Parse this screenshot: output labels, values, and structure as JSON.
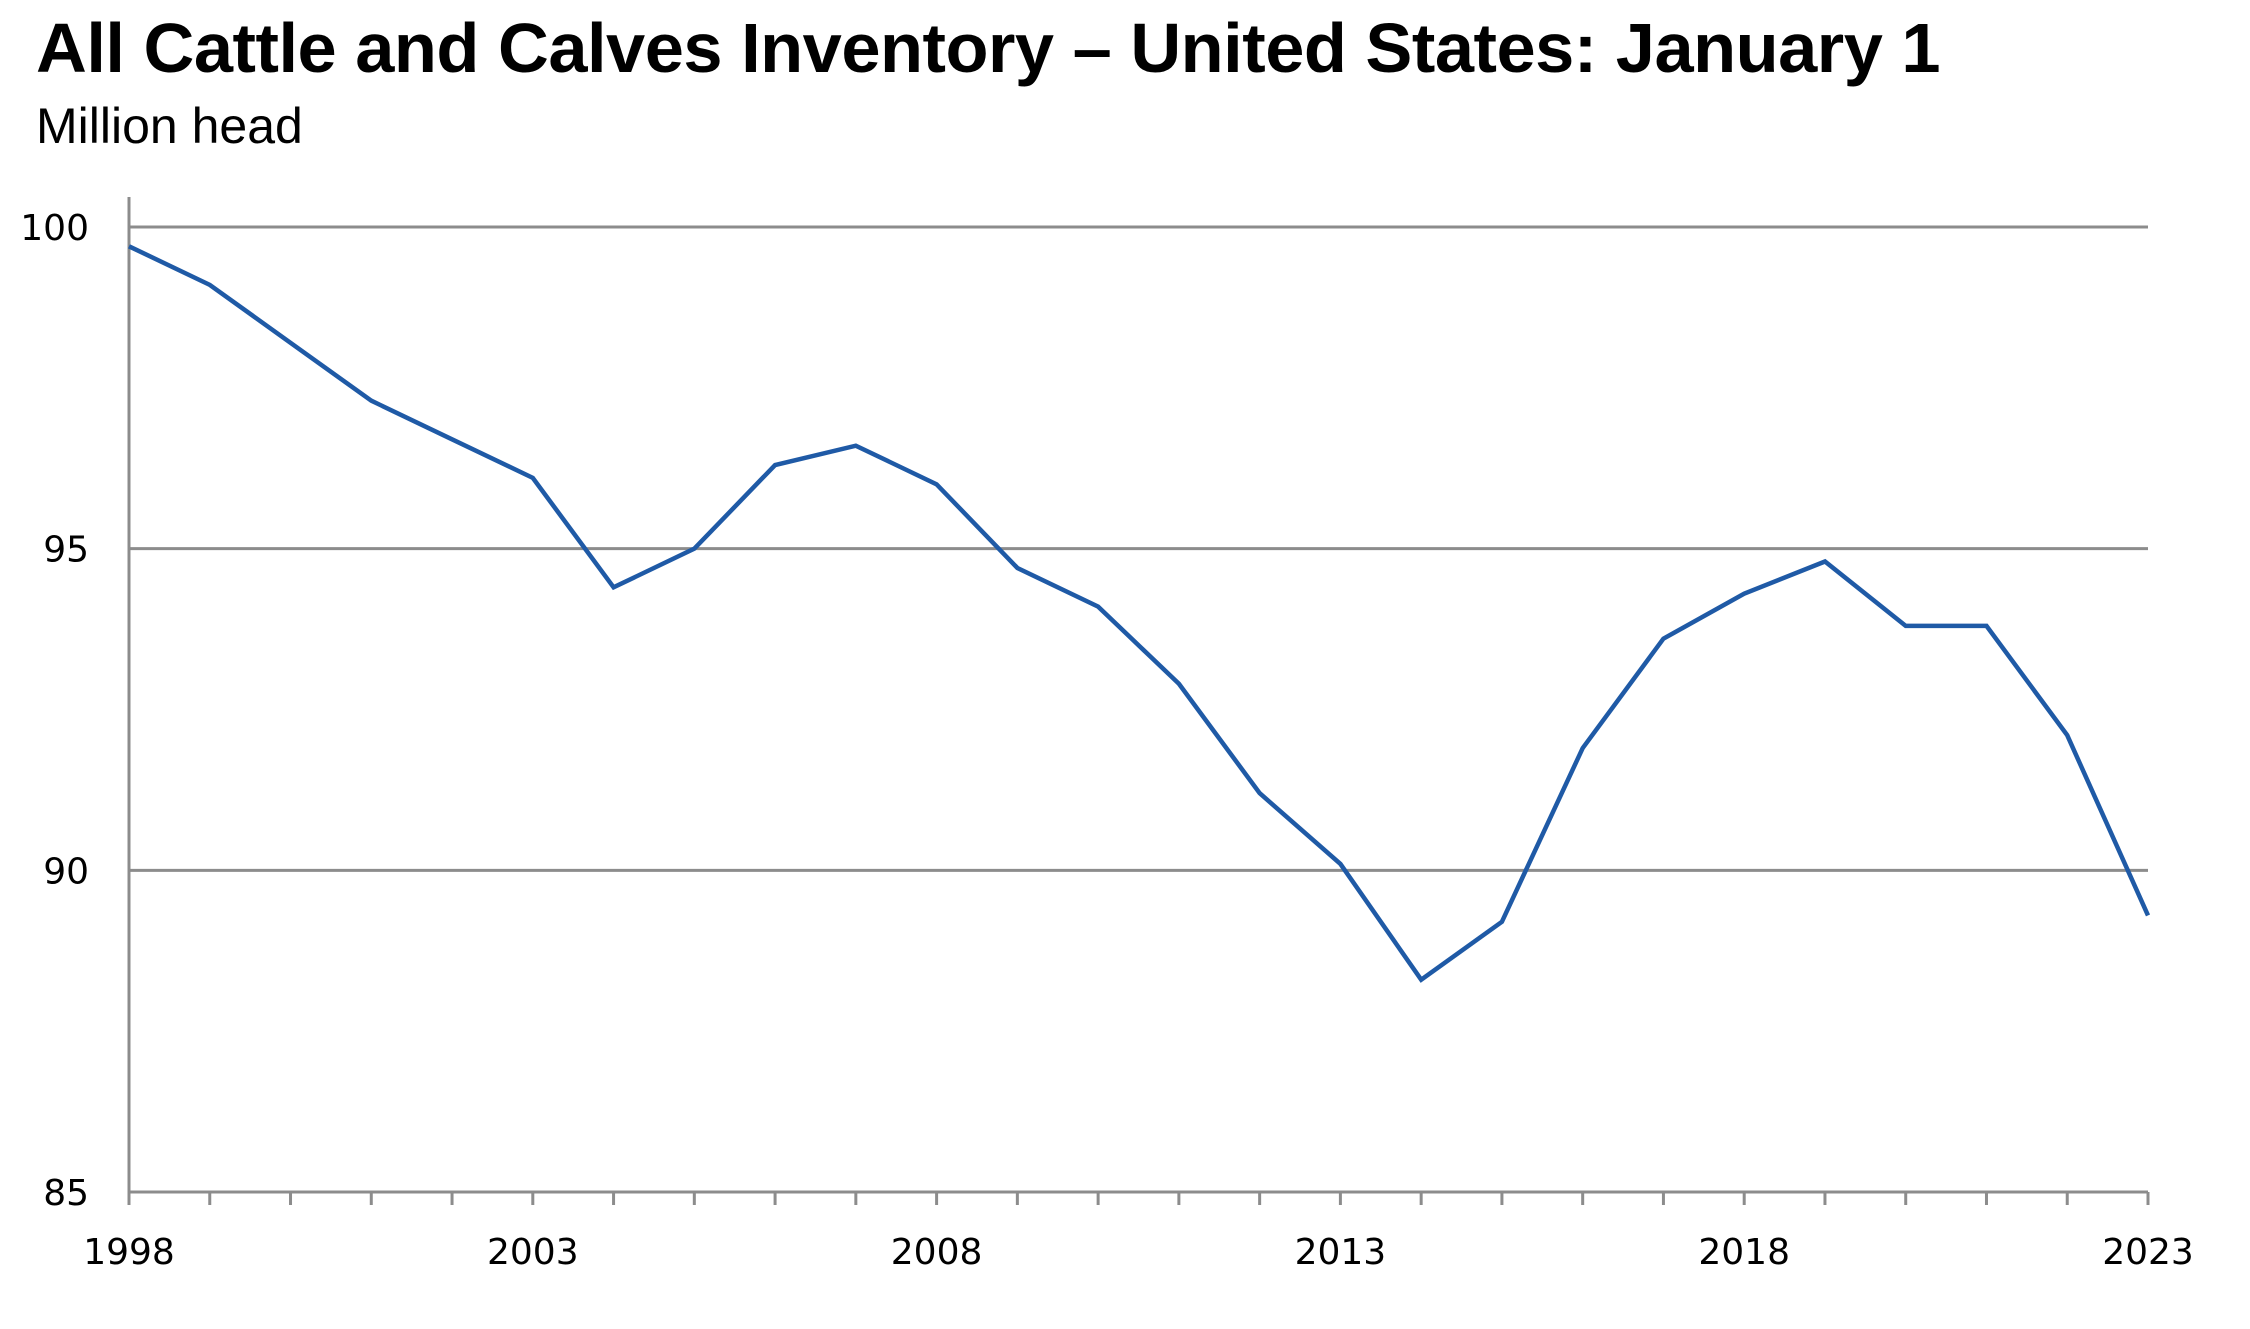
{
  "header": {
    "title": "All Cattle and Calves Inventory – United States: January 1",
    "subtitle": "Million head"
  },
  "colors": {
    "line": "#1f5aa6",
    "grid": "#8c8c8c",
    "axis": "#8c8c8c",
    "text": "#000000"
  },
  "chart_data": {
    "type": "line",
    "title": "All Cattle and Calves Inventory – United States: January 1",
    "subtitle": "Million head",
    "xlabel": "",
    "ylabel": "Million head",
    "x": [
      1998,
      1999,
      2000,
      2001,
      2002,
      2003,
      2004,
      2005,
      2006,
      2007,
      2008,
      2009,
      2010,
      2011,
      2012,
      2013,
      2014,
      2015,
      2016,
      2017,
      2018,
      2019,
      2020,
      2021,
      2022,
      2023
    ],
    "series": [
      {
        "name": "All cattle and calves",
        "values": [
          99.7,
          99.1,
          98.2,
          97.3,
          96.7,
          96.1,
          94.4,
          95.0,
          96.3,
          96.6,
          96.0,
          94.7,
          94.1,
          92.9,
          91.2,
          90.1,
          88.3,
          89.2,
          91.9,
          93.6,
          94.3,
          94.8,
          93.8,
          93.8,
          92.1,
          89.3
        ]
      }
    ],
    "ylim": [
      85,
      100
    ],
    "xlim": [
      1998,
      2023
    ],
    "y_ticks": [
      85,
      90,
      95,
      100
    ],
    "y_tick_labels": [
      "85",
      "90",
      "95",
      "100"
    ],
    "x_ticks": [
      1998,
      2003,
      2008,
      2013,
      2018,
      2023
    ],
    "x_tick_labels": [
      "1998",
      "2003",
      "2008",
      "2013",
      "2018",
      "2023"
    ],
    "grid": {
      "horizontal": true,
      "vertical": false
    },
    "legend": null
  }
}
